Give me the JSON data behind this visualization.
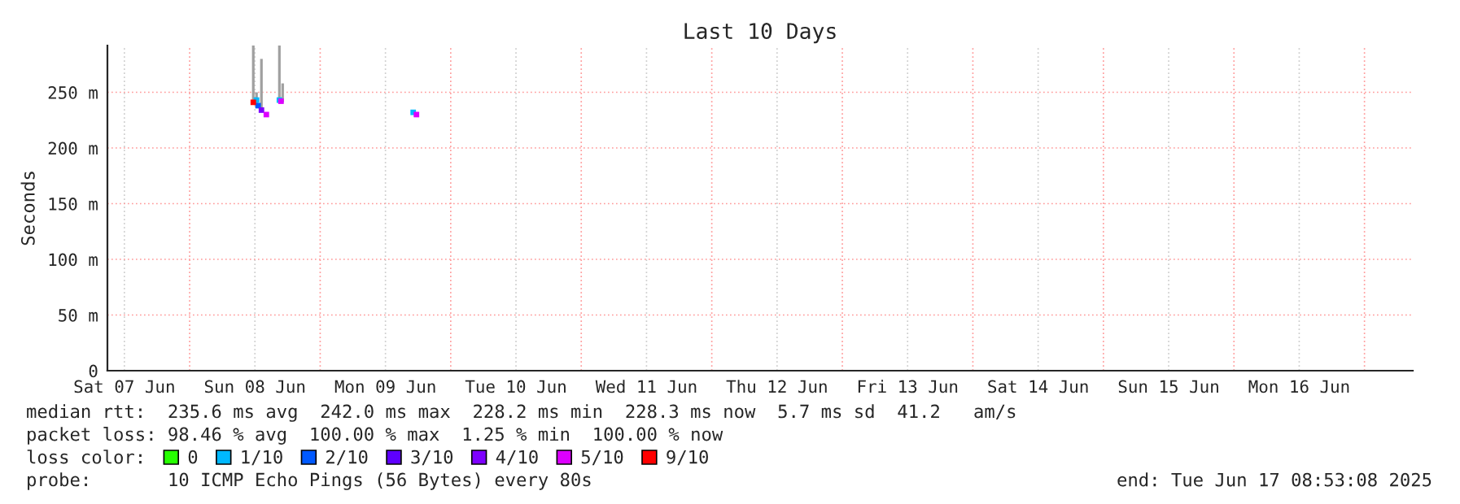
{
  "chart_data": {
    "type": "scatter",
    "title": "Last 10 Days",
    "ylabel": "Seconds",
    "legend_title": "loss color:",
    "legend": "bottom",
    "marker": "square",
    "grid": true,
    "xlim": [
      "2025-06-07T08:53",
      "2025-06-17T08:53"
    ],
    "xticks": [
      {
        "value": "2025-06-07T12:00",
        "label": "Sat 07 Jun"
      },
      {
        "value": "2025-06-08T00:00",
        "label": null
      },
      {
        "value": "2025-06-08T12:00",
        "label": "Sun 08 Jun"
      },
      {
        "value": "2025-06-09T00:00",
        "label": null
      },
      {
        "value": "2025-06-09T12:00",
        "label": "Mon 09 Jun"
      },
      {
        "value": "2025-06-10T00:00",
        "label": null
      },
      {
        "value": "2025-06-10T12:00",
        "label": "Tue 10 Jun"
      },
      {
        "value": "2025-06-11T00:00",
        "label": null
      },
      {
        "value": "2025-06-11T12:00",
        "label": "Wed 11 Jun"
      },
      {
        "value": "2025-06-12T00:00",
        "label": null
      },
      {
        "value": "2025-06-12T12:00",
        "label": "Thu 12 Jun"
      },
      {
        "value": "2025-06-13T00:00",
        "label": null
      },
      {
        "value": "2025-06-13T12:00",
        "label": "Fri 13 Jun"
      },
      {
        "value": "2025-06-14T00:00",
        "label": null
      },
      {
        "value": "2025-06-14T12:00",
        "label": "Sat 14 Jun"
      },
      {
        "value": "2025-06-15T00:00",
        "label": null
      },
      {
        "value": "2025-06-15T12:00",
        "label": "Sun 15 Jun"
      },
      {
        "value": "2025-06-16T00:00",
        "label": null
      },
      {
        "value": "2025-06-16T12:00",
        "label": "Mon 16 Jun"
      },
      {
        "value": "2025-06-17T00:00",
        "label": null
      }
    ],
    "ylim": [
      0,
      292
    ],
    "yticks": [
      {
        "value": 0,
        "label": "0"
      },
      {
        "value": 50,
        "label": "50 m"
      },
      {
        "value": 100,
        "label": "100 m"
      },
      {
        "value": 150,
        "label": "150 m"
      },
      {
        "value": 200,
        "label": "200 m"
      },
      {
        "value": 250,
        "label": "250 m"
      }
    ],
    "series": [
      {
        "type": "bar",
        "color": "#a0a0a0",
        "x": [
          "2025-06-08T11:42",
          "2025-06-08T12:18",
          "2025-06-08T13:12",
          "2025-06-08T16:30",
          "2025-06-08T17:06"
        ],
        "base": [
          243,
          236,
          234,
          243,
          241
        ],
        "values": [
          49,
          14,
          46,
          49,
          17
        ]
      },
      {
        "name": "0",
        "color": "#26ff00"
      },
      {
        "name": "1/10",
        "color": "#00b8ff",
        "x": [
          "2025-06-08T12:18",
          "2025-06-08T16:30",
          "2025-06-09T17:06"
        ],
        "values": [
          243,
          243,
          232
        ]
      },
      {
        "name": "2/10",
        "color": "#0059ff",
        "x": [
          "2025-06-08T12:36"
        ],
        "values": [
          238
        ]
      },
      {
        "name": "3/10",
        "color": "#5e00ff"
      },
      {
        "name": "4/10",
        "color": "#7e00ff",
        "x": [
          "2025-06-08T13:12"
        ],
        "values": [
          234
        ]
      },
      {
        "name": "5/10",
        "color": "#dd00ff",
        "x": [
          "2025-06-08T14:06",
          "2025-06-08T16:48",
          "2025-06-09T17:42"
        ],
        "values": [
          230,
          242,
          230
        ]
      },
      {
        "name": "9/10",
        "color": "#ff0000",
        "x": [
          "2025-06-08T11:42"
        ],
        "values": [
          241
        ]
      }
    ],
    "annotations": [
      "median rtt:  235.6 ms avg  242.0 ms max  228.2 ms min  228.3 ms now  5.7 ms sd  41.2   am/s",
      "packet loss: 98.46 % avg  100.00 % max  1.25 % min  100.00 % now",
      "probe:       10 ICMP Echo Pings (56 Bytes) every 80s",
      "end: Tue Jun 17 08:53:08 2025"
    ]
  }
}
